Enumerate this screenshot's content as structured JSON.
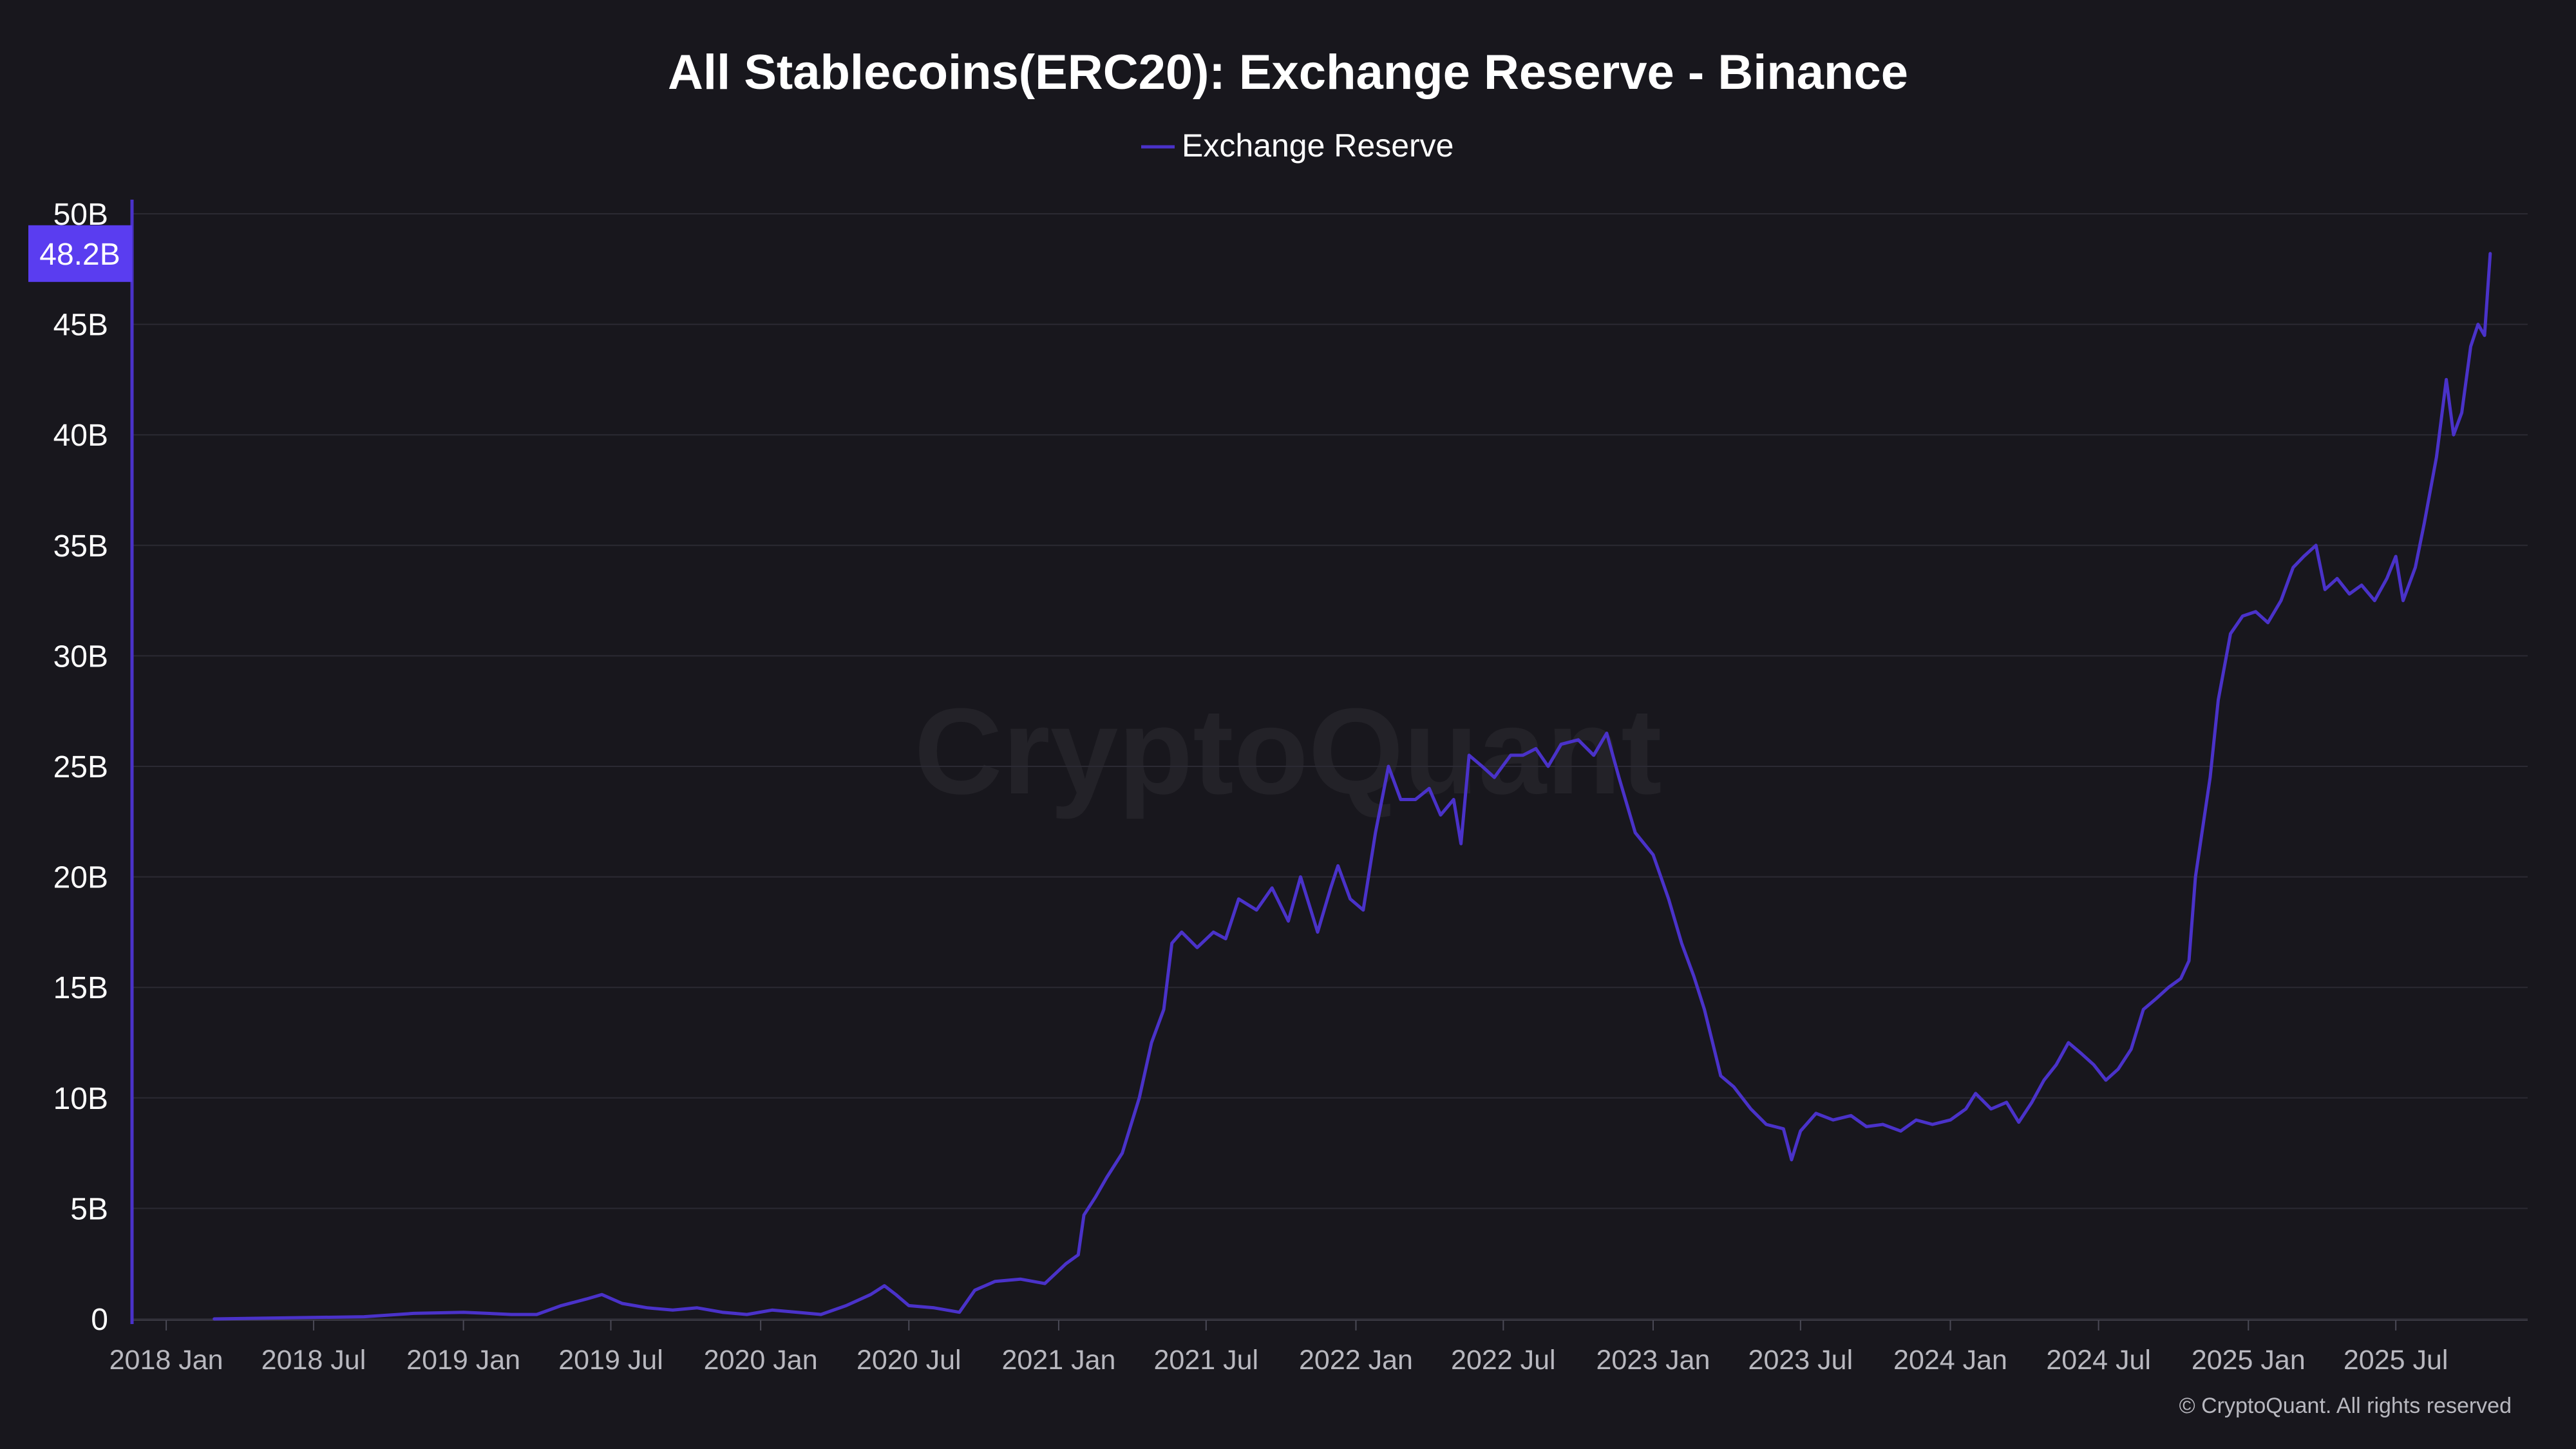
{
  "chart_data": {
    "type": "line",
    "title": "All Stablecoins(ERC20): Exchange Reserve - Binance",
    "legend": {
      "position": "top-center",
      "entries": [
        "Exchange Reserve"
      ]
    },
    "y_ticks": [
      "0",
      "5B",
      "10B",
      "15B",
      "20B",
      "25B",
      "30B",
      "35B",
      "40B",
      "45B",
      "50B"
    ],
    "y_tick_values": [
      0,
      5,
      10,
      15,
      20,
      25,
      30,
      35,
      40,
      45,
      50
    ],
    "ylim": [
      0,
      50
    ],
    "y_unit": "B",
    "x_ticks": [
      "2018 Jan",
      "2018 Jul",
      "2019 Jan",
      "2019 Jul",
      "2020 Jan",
      "2020 Jul",
      "2021 Jan",
      "2021 Jul",
      "2022 Jan",
      "2022 Jul",
      "2023 Jan",
      "2023 Jul",
      "2024 Jan",
      "2024 Jul",
      "2025 Jan",
      "2025 Jul"
    ],
    "x_tick_dates": [
      "2018-01-01",
      "2018-07-01",
      "2019-01-01",
      "2019-07-01",
      "2020-01-01",
      "2020-07-01",
      "2021-01-01",
      "2021-07-01",
      "2022-01-01",
      "2022-07-01",
      "2023-01-01",
      "2023-07-01",
      "2024-01-01",
      "2024-07-01",
      "2025-01-01",
      "2025-07-01"
    ],
    "xlim": [
      "2017-11-20",
      "2025-12-10"
    ],
    "grid": true,
    "current_value_label": "48.2B",
    "series": [
      {
        "name": "Exchange Reserve",
        "color": "#4a32c9",
        "points": [
          [
            "2018-03-01",
            0.0
          ],
          [
            "2018-06-01",
            0.05
          ],
          [
            "2018-09-01",
            0.1
          ],
          [
            "2018-11-01",
            0.25
          ],
          [
            "2019-01-01",
            0.3
          ],
          [
            "2019-03-01",
            0.2
          ],
          [
            "2019-04-01",
            0.2
          ],
          [
            "2019-05-01",
            0.6
          ],
          [
            "2019-06-01",
            0.9
          ],
          [
            "2019-06-20",
            1.1
          ],
          [
            "2019-07-15",
            0.7
          ],
          [
            "2019-08-15",
            0.5
          ],
          [
            "2019-09-15",
            0.4
          ],
          [
            "2019-10-15",
            0.5
          ],
          [
            "2019-11-15",
            0.3
          ],
          [
            "2019-12-15",
            0.2
          ],
          [
            "2020-01-15",
            0.4
          ],
          [
            "2020-02-15",
            0.3
          ],
          [
            "2020-03-15",
            0.2
          ],
          [
            "2020-04-15",
            0.6
          ],
          [
            "2020-05-15",
            1.1
          ],
          [
            "2020-06-01",
            1.5
          ],
          [
            "2020-06-15",
            1.1
          ],
          [
            "2020-07-01",
            0.6
          ],
          [
            "2020-08-01",
            0.5
          ],
          [
            "2020-09-01",
            0.3
          ],
          [
            "2020-09-20",
            1.3
          ],
          [
            "2020-10-15",
            1.7
          ],
          [
            "2020-11-15",
            1.8
          ],
          [
            "2020-12-15",
            1.6
          ],
          [
            "2021-01-10",
            2.5
          ],
          [
            "2021-01-25",
            2.9
          ],
          [
            "2021-02-01",
            4.7
          ],
          [
            "2021-02-15",
            5.5
          ],
          [
            "2021-03-01",
            6.4
          ],
          [
            "2021-03-20",
            7.5
          ],
          [
            "2021-04-10",
            10.0
          ],
          [
            "2021-04-25",
            12.5
          ],
          [
            "2021-05-10",
            14.0
          ],
          [
            "2021-05-20",
            17.0
          ],
          [
            "2021-06-01",
            17.5
          ],
          [
            "2021-06-20",
            16.8
          ],
          [
            "2021-07-10",
            17.5
          ],
          [
            "2021-07-25",
            17.2
          ],
          [
            "2021-08-10",
            19.0
          ],
          [
            "2021-09-01",
            18.5
          ],
          [
            "2021-09-20",
            19.5
          ],
          [
            "2021-10-10",
            18.0
          ],
          [
            "2021-10-25",
            20.0
          ],
          [
            "2021-11-15",
            17.5
          ],
          [
            "2021-12-01",
            19.5
          ],
          [
            "2021-12-10",
            20.5
          ],
          [
            "2021-12-25",
            19.0
          ],
          [
            "2022-01-10",
            18.5
          ],
          [
            "2022-01-25",
            22.0
          ],
          [
            "2022-02-10",
            25.0
          ],
          [
            "2022-02-25",
            23.5
          ],
          [
            "2022-03-15",
            23.5
          ],
          [
            "2022-04-01",
            24.0
          ],
          [
            "2022-04-15",
            22.8
          ],
          [
            "2022-05-01",
            23.5
          ],
          [
            "2022-05-10",
            21.5
          ],
          [
            "2022-05-20",
            25.5
          ],
          [
            "2022-06-05",
            25.0
          ],
          [
            "2022-06-20",
            24.5
          ],
          [
            "2022-07-10",
            25.5
          ],
          [
            "2022-07-25",
            25.5
          ],
          [
            "2022-08-10",
            25.8
          ],
          [
            "2022-08-25",
            25.0
          ],
          [
            "2022-09-10",
            26.0
          ],
          [
            "2022-10-01",
            26.2
          ],
          [
            "2022-10-20",
            25.5
          ],
          [
            "2022-11-05",
            26.5
          ],
          [
            "2022-11-20",
            24.5
          ],
          [
            "2022-12-10",
            22.0
          ],
          [
            "2023-01-01",
            21.0
          ],
          [
            "2023-01-20",
            19.0
          ],
          [
            "2023-02-05",
            17.0
          ],
          [
            "2023-02-20",
            15.5
          ],
          [
            "2023-03-05",
            14.0
          ],
          [
            "2023-03-15",
            12.5
          ],
          [
            "2023-03-25",
            11.0
          ],
          [
            "2023-04-10",
            10.5
          ],
          [
            "2023-05-01",
            9.5
          ],
          [
            "2023-05-20",
            8.8
          ],
          [
            "2023-06-10",
            8.6
          ],
          [
            "2023-06-20",
            7.2
          ],
          [
            "2023-07-01",
            8.5
          ],
          [
            "2023-07-20",
            9.3
          ],
          [
            "2023-08-10",
            9.0
          ],
          [
            "2023-09-01",
            9.2
          ],
          [
            "2023-09-20",
            8.7
          ],
          [
            "2023-10-10",
            8.8
          ],
          [
            "2023-11-01",
            8.5
          ],
          [
            "2023-11-20",
            9.0
          ],
          [
            "2023-12-10",
            8.8
          ],
          [
            "2024-01-01",
            9.0
          ],
          [
            "2024-01-20",
            9.5
          ],
          [
            "2024-02-01",
            10.2
          ],
          [
            "2024-02-20",
            9.5
          ],
          [
            "2024-03-10",
            9.8
          ],
          [
            "2024-03-25",
            8.9
          ],
          [
            "2024-04-10",
            9.8
          ],
          [
            "2024-04-25",
            10.8
          ],
          [
            "2024-05-10",
            11.5
          ],
          [
            "2024-05-25",
            12.5
          ],
          [
            "2024-06-10",
            12.0
          ],
          [
            "2024-06-25",
            11.5
          ],
          [
            "2024-07-10",
            10.8
          ],
          [
            "2024-07-25",
            11.3
          ],
          [
            "2024-08-10",
            12.2
          ],
          [
            "2024-08-25",
            14.0
          ],
          [
            "2024-09-10",
            14.5
          ],
          [
            "2024-09-25",
            15.0
          ],
          [
            "2024-10-10",
            15.4
          ],
          [
            "2024-10-20",
            16.2
          ],
          [
            "2024-10-28",
            20.0
          ],
          [
            "2024-11-05",
            22.0
          ],
          [
            "2024-11-15",
            24.5
          ],
          [
            "2024-11-25",
            28.0
          ],
          [
            "2024-12-10",
            31.0
          ],
          [
            "2024-12-25",
            31.8
          ],
          [
            "2025-01-10",
            32.0
          ],
          [
            "2025-01-25",
            31.5
          ],
          [
            "2025-02-10",
            32.5
          ],
          [
            "2025-02-25",
            34.0
          ],
          [
            "2025-03-10",
            34.5
          ],
          [
            "2025-03-25",
            35.0
          ],
          [
            "2025-04-05",
            33.0
          ],
          [
            "2025-04-20",
            33.5
          ],
          [
            "2025-05-05",
            32.8
          ],
          [
            "2025-05-20",
            33.2
          ],
          [
            "2025-06-05",
            32.5
          ],
          [
            "2025-06-20",
            33.5
          ],
          [
            "2025-07-01",
            34.5
          ],
          [
            "2025-07-10",
            32.5
          ],
          [
            "2025-07-25",
            34.0
          ],
          [
            "2025-08-05",
            36.0
          ],
          [
            "2025-08-20",
            39.0
          ],
          [
            "2025-09-01",
            42.5
          ],
          [
            "2025-09-10",
            40.0
          ],
          [
            "2025-09-20",
            41.0
          ],
          [
            "2025-10-01",
            44.0
          ],
          [
            "2025-10-10",
            45.0
          ],
          [
            "2025-10-18",
            44.5
          ],
          [
            "2025-10-25",
            48.2
          ]
        ]
      }
    ]
  },
  "watermark": "CryptoQuant",
  "copyright": "© CryptoQuant. All rights reserved"
}
